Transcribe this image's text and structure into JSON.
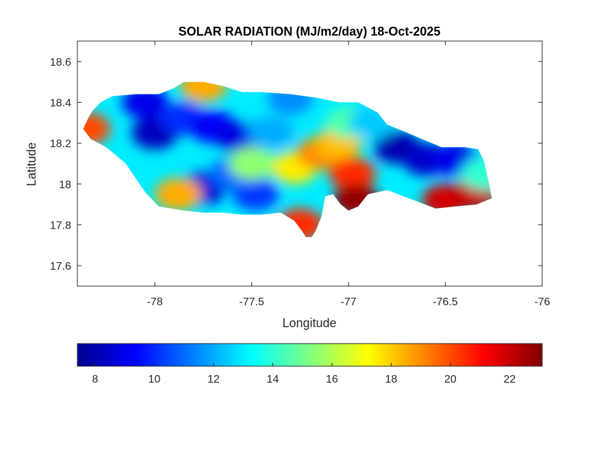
{
  "figure": {
    "title": "SOLAR RADIATION (MJ/m2/day) 18-Oct-2025",
    "xlabel": "Longitude",
    "ylabel": "Latitude"
  },
  "axes": {
    "x_range": [
      -78.4,
      -76.0
    ],
    "y_range": [
      17.5,
      18.7
    ],
    "x_ticks": [
      -78,
      -77.5,
      -77,
      -76.5,
      -76
    ],
    "x_tick_labels": [
      "-78",
      "-77.5",
      "-77",
      "-76.5",
      "-76"
    ],
    "y_ticks": [
      17.6,
      17.8,
      18.0,
      18.2,
      18.4,
      18.6
    ],
    "y_tick_labels": [
      "17.6",
      "17.8",
      "18",
      "18.2",
      "18.4",
      "18.6"
    ]
  },
  "colorbar": {
    "colormap": "jet",
    "range": [
      7.4,
      23.1
    ],
    "ticks": [
      8,
      10,
      12,
      14,
      16,
      18,
      20,
      22
    ],
    "tick_labels": [
      "8",
      "10",
      "12",
      "14",
      "16",
      "18",
      "20",
      "22"
    ],
    "colors": [
      "#00008f",
      "#0000ff",
      "#0080ff",
      "#00ffff",
      "#80ff80",
      "#ffff00",
      "#ff8000",
      "#ff0000",
      "#800000"
    ]
  },
  "map_data": {
    "region": "Jamaica",
    "outline_lonlat": [
      [
        -78.37,
        18.27
      ],
      [
        -78.34,
        18.33
      ],
      [
        -78.32,
        18.36
      ],
      [
        -78.28,
        18.4
      ],
      [
        -78.22,
        18.43
      ],
      [
        -78.1,
        18.44
      ],
      [
        -77.98,
        18.44
      ],
      [
        -77.9,
        18.47
      ],
      [
        -77.85,
        18.5
      ],
      [
        -77.75,
        18.5
      ],
      [
        -77.65,
        18.48
      ],
      [
        -77.55,
        18.45
      ],
      [
        -77.45,
        18.45
      ],
      [
        -77.3,
        18.44
      ],
      [
        -77.15,
        18.42
      ],
      [
        -77.05,
        18.4
      ],
      [
        -76.95,
        18.4
      ],
      [
        -76.85,
        18.35
      ],
      [
        -76.8,
        18.29
      ],
      [
        -76.72,
        18.26
      ],
      [
        -76.62,
        18.22
      ],
      [
        -76.52,
        18.18
      ],
      [
        -76.4,
        18.18
      ],
      [
        -76.33,
        18.17
      ],
      [
        -76.3,
        18.11
      ],
      [
        -76.27,
        17.98
      ],
      [
        -76.26,
        17.93
      ],
      [
        -76.34,
        17.9
      ],
      [
        -76.45,
        17.89
      ],
      [
        -76.55,
        17.88
      ],
      [
        -76.66,
        17.92
      ],
      [
        -76.8,
        17.97
      ],
      [
        -76.9,
        17.95
      ],
      [
        -76.95,
        17.89
      ],
      [
        -77.0,
        17.87
      ],
      [
        -77.04,
        17.9
      ],
      [
        -77.08,
        17.95
      ],
      [
        -77.12,
        17.94
      ],
      [
        -77.14,
        17.84
      ],
      [
        -77.17,
        17.77
      ],
      [
        -77.19,
        17.74
      ],
      [
        -77.22,
        17.74
      ],
      [
        -77.24,
        17.77
      ],
      [
        -77.28,
        17.82
      ],
      [
        -77.35,
        17.86
      ],
      [
        -77.45,
        17.85
      ],
      [
        -77.55,
        17.85
      ],
      [
        -77.65,
        17.86
      ],
      [
        -77.75,
        17.86
      ],
      [
        -77.85,
        17.87
      ],
      [
        -77.98,
        17.89
      ],
      [
        -78.05,
        17.96
      ],
      [
        -78.15,
        18.1
      ],
      [
        -78.25,
        18.18
      ],
      [
        -78.33,
        18.22
      ]
    ],
    "radiation_hotspots_lonlat_value": [
      [
        -78.05,
        18.4,
        9.0
      ],
      [
        -78.0,
        18.25,
        8.2
      ],
      [
        -77.85,
        18.32,
        10.0
      ],
      [
        -77.7,
        18.28,
        9.2
      ],
      [
        -77.55,
        18.22,
        8.8
      ],
      [
        -77.75,
        17.98,
        8.6
      ],
      [
        -77.48,
        17.95,
        10.2
      ],
      [
        -77.6,
        18.05,
        11.0
      ],
      [
        -77.28,
        18.08,
        17.5
      ],
      [
        -77.15,
        18.15,
        19.0
      ],
      [
        -77.05,
        18.2,
        18.2
      ],
      [
        -76.98,
        18.05,
        20.5
      ],
      [
        -76.96,
        17.92,
        22.8
      ],
      [
        -76.75,
        18.18,
        8.0
      ],
      [
        -76.6,
        18.12,
        8.4
      ],
      [
        -76.45,
        18.12,
        9.0
      ],
      [
        -76.5,
        17.92,
        21.8
      ],
      [
        -76.35,
        17.95,
        22.0
      ],
      [
        -77.25,
        17.8,
        20.5
      ],
      [
        -78.35,
        18.27,
        20.0
      ],
      [
        -77.3,
        18.42,
        11.5
      ],
      [
        -77.88,
        17.95,
        18.5
      ],
      [
        -77.75,
        18.48,
        18.5
      ],
      [
        -77.4,
        18.25,
        12.0
      ],
      [
        -77.0,
        18.3,
        14.5
      ],
      [
        -77.5,
        18.1,
        15.5
      ],
      [
        -76.88,
        18.3,
        12.5
      ],
      [
        -76.3,
        18.05,
        14.0
      ]
    ],
    "background_value": 13.0
  }
}
